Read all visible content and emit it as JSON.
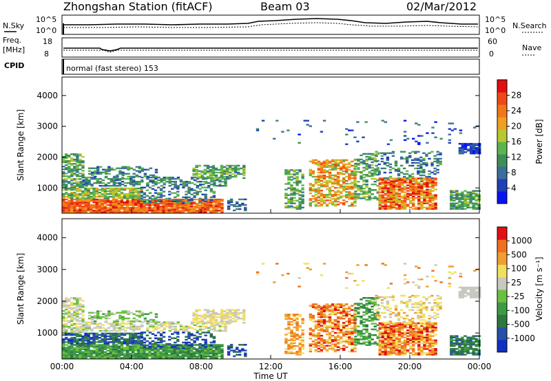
{
  "header": {
    "station": "Zhongshan Station (fitACF)",
    "beam": "Beam 03",
    "date": "02/Mar/2012"
  },
  "top_panels": {
    "nsky_label": "N.Sky",
    "nsearch_label": "N.Search",
    "nsky_ticks": [
      "10^5",
      "10^0"
    ],
    "nsearch_ticks": [
      "10^5",
      "10^0"
    ],
    "freq_label_1": "Freq.",
    "freq_label_2": "[MHz]",
    "freq_ticks": [
      "18",
      "8"
    ],
    "nave_label": "Nave",
    "nave_ticks": [
      "60",
      "0"
    ],
    "cpid_label": "CPID",
    "cpid_text": "normal (fast stereo) 153"
  },
  "chart_data": [
    {
      "type": "heatmap",
      "name": "power",
      "ylabel": "Slant Range [km]",
      "yticks": [
        1000,
        2000,
        3000,
        4000
      ],
      "ylim": [
        180,
        4600
      ],
      "xlim": [
        0,
        24
      ],
      "colorbar": {
        "label": "Power [dB]",
        "ticks": [
          "28",
          "24",
          "20",
          "16",
          "12",
          "8",
          "4"
        ],
        "colors": [
          "#0a14f0",
          "#2040b8",
          "#3c6e9a",
          "#3f8e5a",
          "#5ab54e",
          "#b8c830",
          "#f0a020",
          "#f07818",
          "#f04818",
          "#e01010"
        ]
      }
    },
    {
      "type": "heatmap",
      "name": "velocity",
      "ylabel": "Slant Range [km]",
      "yticks": [
        1000,
        2000,
        3000,
        4000
      ],
      "ylim": [
        180,
        4600
      ],
      "xlim": [
        0,
        24
      ],
      "colorbar": {
        "label": "Velocity [m s⁻¹]",
        "ticks": [
          "1000",
          "500",
          "100",
          "25",
          "-25",
          "-100",
          "-500",
          "-1000"
        ],
        "colors": [
          "#1030c0",
          "#2850a8",
          "#2e7840",
          "#3f9a48",
          "#6cc040",
          "#c8c8c0",
          "#f0e060",
          "#f0a030",
          "#f07020",
          "#e01010"
        ]
      },
      "xlabel": "Time UT",
      "xticks": [
        "00:00",
        "04:00",
        "08:00",
        "12:00",
        "16:00",
        "20:00",
        "00:00"
      ]
    }
  ]
}
